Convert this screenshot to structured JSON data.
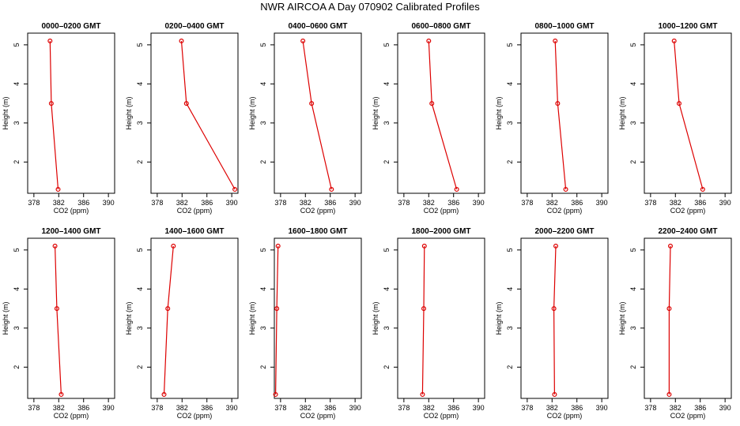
{
  "title": "NWR AIRCOA A  Day 070902  Calibrated Profiles",
  "colors": {
    "series": "#dd0000",
    "frame": "#000000"
  },
  "chart_data": {
    "type": "line",
    "xlabel": "CO2 (ppm)",
    "ylabel": "Height (m)",
    "xlim": [
      377,
      391
    ],
    "ylim": [
      1.2,
      5.3
    ],
    "xticks": [
      378,
      382,
      386,
      390
    ],
    "yticks": [
      2,
      3,
      4,
      5
    ],
    "heights": [
      5.1,
      3.5,
      1.3
    ],
    "panels": [
      {
        "title": "0000–0200 GMT",
        "co2": [
          380.6,
          380.8,
          381.9
        ]
      },
      {
        "title": "0200–0400 GMT",
        "co2": [
          381.9,
          382.7,
          390.5
        ]
      },
      {
        "title": "0400–0600 GMT",
        "co2": [
          381.6,
          383.0,
          386.2
        ]
      },
      {
        "title": "0600–0800 GMT",
        "co2": [
          382.0,
          382.5,
          386.5
        ]
      },
      {
        "title": "0800–1000 GMT",
        "co2": [
          382.5,
          382.9,
          384.2
        ]
      },
      {
        "title": "1000–1200 GMT",
        "co2": [
          381.8,
          382.6,
          386.4
        ]
      },
      {
        "title": "1200–1400 GMT",
        "co2": [
          381.4,
          381.7,
          382.4
        ]
      },
      {
        "title": "1400–1600 GMT",
        "co2": [
          380.6,
          379.7,
          379.1
        ]
      },
      {
        "title": "1600–1800 GMT",
        "co2": [
          377.6,
          377.4,
          377.2
        ]
      },
      {
        "title": "1800–2000 GMT",
        "co2": [
          381.3,
          381.2,
          381.0
        ]
      },
      {
        "title": "2000–2200 GMT",
        "co2": [
          382.6,
          382.3,
          382.4
        ]
      },
      {
        "title": "2200–2400 GMT",
        "co2": [
          381.2,
          381.0,
          381.0
        ]
      }
    ]
  }
}
